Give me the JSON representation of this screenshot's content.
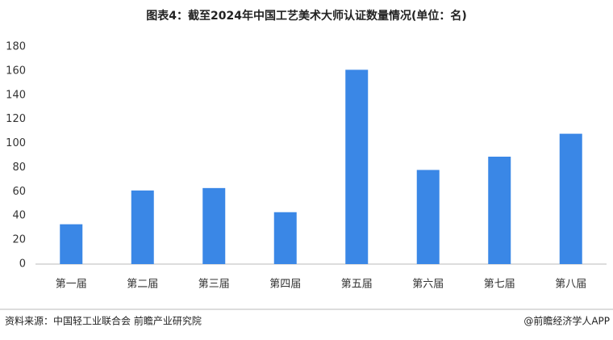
{
  "chart_data": {
    "type": "bar",
    "title": "图表4：截至2024年中国工艺美术大师认证数量情况(单位：名)",
    "categories": [
      "第一届",
      "第二届",
      "第三届",
      "第四届",
      "第五届",
      "第六届",
      "第七届",
      "第八届"
    ],
    "values": [
      33,
      61,
      63,
      43,
      161,
      78,
      89,
      108
    ],
    "color": "#3a87e6",
    "ylim": [
      0,
      180
    ],
    "yticks": [
      0,
      20,
      40,
      60,
      80,
      100,
      120,
      140,
      160,
      180
    ],
    "grid": false,
    "source": "资料来源：中国轻工业联合会 前瞻产业研究院",
    "credit": "@前瞻经济学人APP"
  }
}
